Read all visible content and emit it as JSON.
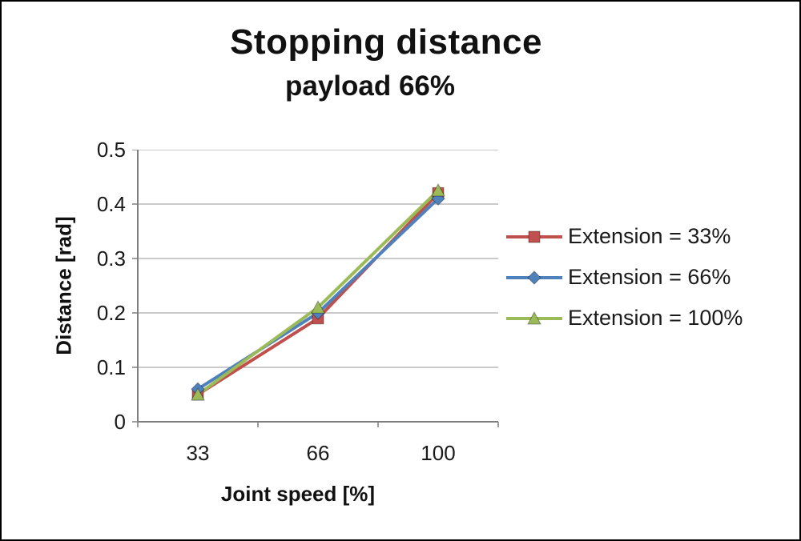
{
  "chart_data": {
    "type": "line",
    "title": "Stopping distance",
    "subtitle": "payload 66%",
    "xlabel": "Joint speed [%]",
    "ylabel": "Distance [rad]",
    "x_type": "category",
    "categories": [
      33,
      66,
      100
    ],
    "yticks": [
      0,
      0.1,
      0.2,
      0.3,
      0.4,
      0.5
    ],
    "ylim": [
      0,
      0.5
    ],
    "grid": true,
    "legend_position": "right",
    "series": [
      {
        "name": "Extension = 33%",
        "marker": "square",
        "color": "#C0504D",
        "values": [
          0.05,
          0.19,
          0.42
        ]
      },
      {
        "name": "Extension = 66%",
        "marker": "diamond",
        "color": "#4F81BD",
        "values": [
          0.06,
          0.2,
          0.41
        ]
      },
      {
        "name": "Extension = 100%",
        "marker": "triangle",
        "color": "#9BBB59",
        "values": [
          0.05,
          0.21,
          0.425
        ]
      }
    ],
    "colors": {
      "gridline": "#ABABAB",
      "axis": "#7F7F7F",
      "text": "#1a1a1a"
    }
  }
}
